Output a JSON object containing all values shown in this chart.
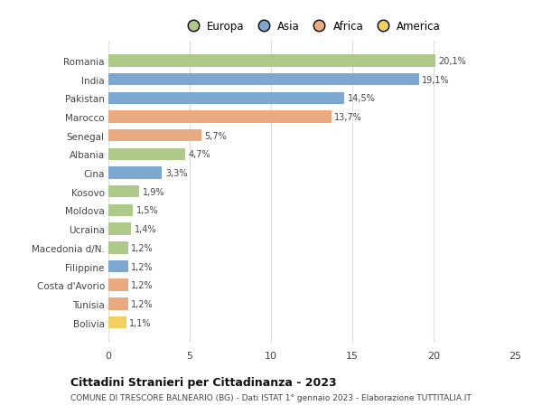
{
  "categories": [
    "Bolivia",
    "Tunisia",
    "Costa d'Avorio",
    "Filippine",
    "Macedonia d/N.",
    "Ucraina",
    "Moldova",
    "Kosovo",
    "Cina",
    "Albania",
    "Senegal",
    "Marocco",
    "Pakistan",
    "India",
    "Romania"
  ],
  "values": [
    1.1,
    1.2,
    1.2,
    1.2,
    1.2,
    1.4,
    1.5,
    1.9,
    3.3,
    4.7,
    5.7,
    13.7,
    14.5,
    19.1,
    20.1
  ],
  "continents": [
    "America",
    "Africa",
    "Africa",
    "Asia",
    "Europa",
    "Europa",
    "Europa",
    "Europa",
    "Asia",
    "Europa",
    "Africa",
    "Africa",
    "Asia",
    "Asia",
    "Europa"
  ],
  "continent_colors": {
    "Europa": "#aeca8a",
    "Asia": "#7ba7d0",
    "Africa": "#e8aa7e",
    "America": "#f0d060"
  },
  "legend_order": [
    "Europa",
    "Asia",
    "Africa",
    "America"
  ],
  "title": "Cittadini Stranieri per Cittadinanza - 2023",
  "subtitle": "COMUNE DI TRESCORE BALNEARIO (BG) - Dati ISTAT 1° gennaio 2023 - Elaborazione TUTTITALIA.IT",
  "xlim": [
    0,
    25
  ],
  "xticks": [
    0,
    5,
    10,
    15,
    20,
    25
  ],
  "bg_color": "#ffffff",
  "grid_color": "#dddddd",
  "bar_height": 0.65
}
